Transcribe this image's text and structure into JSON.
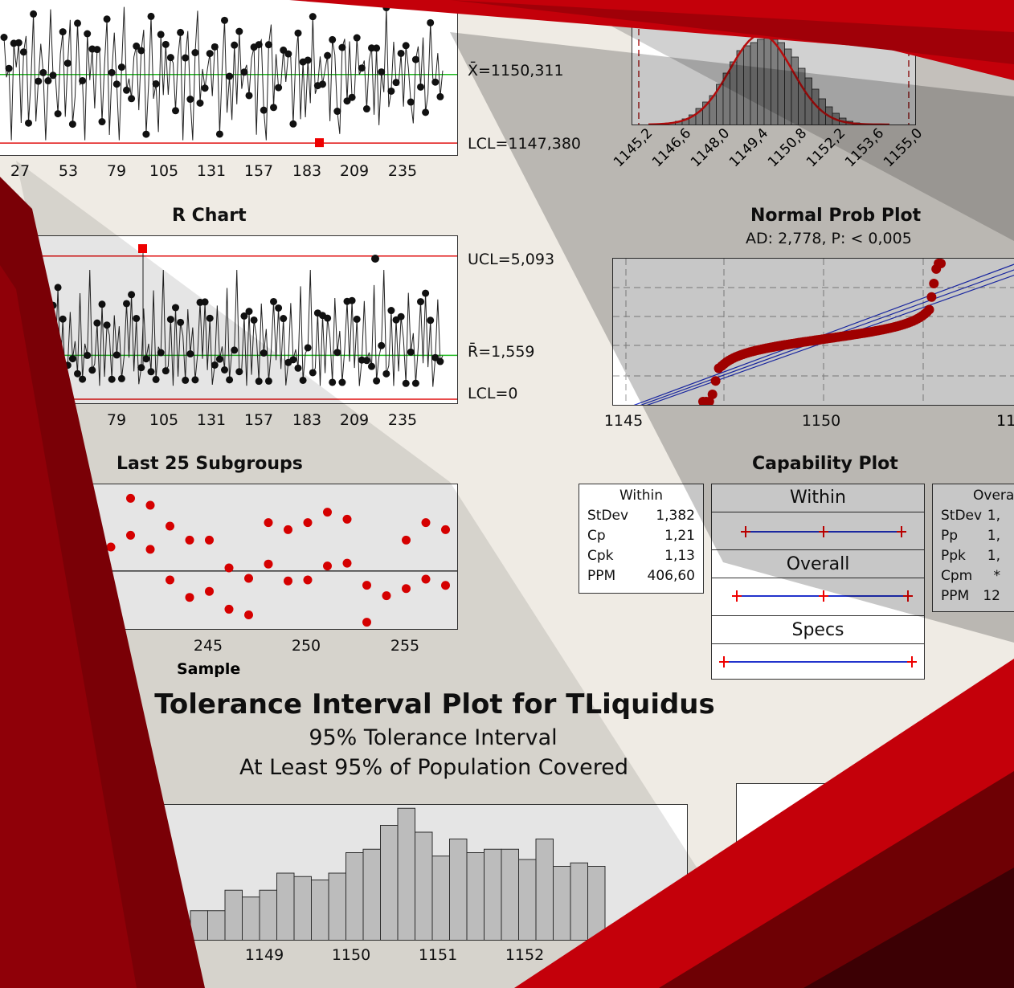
{
  "xbar_chart": {
    "center_label": "X̄=1150,311",
    "lcl_label": "LCL=1147,380",
    "x_ticks": [
      "27",
      "53",
      "79",
      "105",
      "131",
      "157",
      "183",
      "209",
      "235"
    ],
    "center": 1150.311,
    "lcl": 1147.38,
    "marker": "1"
  },
  "histogram_top": {
    "x_ticks": [
      "1145,2",
      "1146,6",
      "1148,0",
      "1149,4",
      "1150,8",
      "1152,2",
      "1153,6",
      "1155,0"
    ]
  },
  "r_chart": {
    "title": "R Chart",
    "ucl_label": "UCL=5,093",
    "center_label": "R̄=1,559",
    "lcl_label": "LCL=0",
    "x_ticks": [
      "53",
      "79",
      "105",
      "131",
      "157",
      "183",
      "209",
      "235"
    ],
    "ucl": 5.093,
    "center": 1.559,
    "lcl": 0,
    "marker": "1"
  },
  "normal_prob": {
    "title": "Normal Prob Plot",
    "subtitle": "AD: 2,778, P: < 0,005",
    "x_ticks": [
      "1145",
      "1150",
      "11"
    ]
  },
  "last25": {
    "title": "Last 25 Subgroups",
    "xlabel": "Sample",
    "x_ticks": [
      "240",
      "245",
      "250",
      "255"
    ]
  },
  "capability": {
    "title": "Capability Plot",
    "within_box": {
      "heading": "Within",
      "rows": [
        {
          "k": "StDev",
          "v": "1,382"
        },
        {
          "k": "Cp",
          "v": "1,21"
        },
        {
          "k": "Cpk",
          "v": "1,13"
        },
        {
          "k": "PPM",
          "v": "406,60"
        }
      ]
    },
    "bands": [
      "Within",
      "Overall",
      "Specs"
    ],
    "overall_box": {
      "heading": "Overa",
      "rows": [
        {
          "k": "StDev",
          "v": "1,"
        },
        {
          "k": "Pp",
          "v": "1,"
        },
        {
          "k": "Ppk",
          "v": "1,"
        },
        {
          "k": "Cpm",
          "v": "*"
        },
        {
          "k": "PPM",
          "v": "12"
        }
      ]
    }
  },
  "tolerance": {
    "title": "Tolerance Interval Plot for TLiquidus",
    "line1": "95% Tolerance Interval",
    "line2": "At Least 95% of Population Covered",
    "x_ticks": [
      "1148",
      "1149",
      "1150",
      "1151",
      "1152"
    ]
  },
  "colors": {
    "control_limit": "#e01010",
    "center_line": "#22bb22",
    "points": "#111111",
    "out_of_control": "#ee0000",
    "prob_fit": "#2233cc",
    "banner_red": "#c4000a",
    "banner_dark": "#6e0004"
  },
  "chart_data": [
    {
      "type": "line",
      "title": "",
      "xlabel": "",
      "ylabel": "",
      "x_ticks": [
        27,
        53,
        79,
        105,
        131,
        157,
        183,
        209,
        235
      ],
      "series": [
        {
          "values": [
            1151.9,
            1149.3,
            1150.8,
            1147.6,
            1151.2,
            1149.9,
            1152.3,
            1148.8,
            1150.5,
            1151.6,
            1149.1,
            1150.2,
            1152.0,
            1148.4,
            1150.9,
            1151.3,
            1149.6,
            1147.4,
            1150.7,
            1152.4,
            1149.8,
            1151.0,
            1148.9,
            1150.3,
            1152.1,
            1149.4,
            1150.6,
            1151.8,
            1148.6,
            1150.1
          ]
        }
      ],
      "lines": {
        "center": 1150.311,
        "lcl": 1147.38
      }
    },
    {
      "type": "line",
      "title": "R Chart",
      "x_ticks": [
        53,
        79,
        105,
        131,
        157,
        183,
        209,
        235
      ],
      "series": [
        {
          "values": [
            1.2,
            3.4,
            0.6,
            2.1,
            1.8,
            4.2,
            0.9,
            1.5,
            2.8,
            0.4,
            3.1,
            1.1,
            2.5,
            1.9,
            0.7,
            3.8,
            1.4,
            2.2,
            0.8,
            1.7,
            2.9,
            1.3,
            4.6,
            1.0,
            2.4,
            0.5,
            1.6,
            3.0,
            1.2,
            2.0
          ]
        }
      ],
      "lines": {
        "ucl": 5.093,
        "center": 1.559,
        "lcl": 0
      }
    },
    {
      "type": "scatter",
      "title": "Last 25 Subgroups",
      "xlabel": "Sample",
      "x": [
        236,
        237,
        238,
        239,
        240,
        241,
        242,
        243,
        244,
        245,
        246,
        247,
        248,
        249,
        250,
        251,
        252,
        253,
        254,
        255,
        256,
        257
      ],
      "series": [
        {
          "values": [
            1151.2,
            1150.6,
            1151.8,
            1152.0,
            1151.0,
            1152.4,
            1152.2,
            1151.6,
            1151.2,
            1151.2,
            1150.4,
            1150.1,
            1151.7,
            1151.5,
            1151.7,
            1152.0,
            1151.8,
            1149.9,
            1149.6,
            1151.2,
            1151.7,
            1151.5
          ]
        }
      ],
      "center": 1150.311
    },
    {
      "type": "bar",
      "title": "Tolerance Interval Plot for TLiquidus",
      "x_ticks": [
        1148,
        1149,
        1150,
        1151,
        1152
      ],
      "values": [
        7,
        10,
        7,
        6,
        9,
        9,
        15,
        13,
        15,
        20,
        19,
        18,
        20,
        26,
        27,
        34,
        39,
        32,
        25,
        30,
        26,
        27,
        27,
        24,
        30,
        22,
        23,
        22
      ]
    }
  ]
}
